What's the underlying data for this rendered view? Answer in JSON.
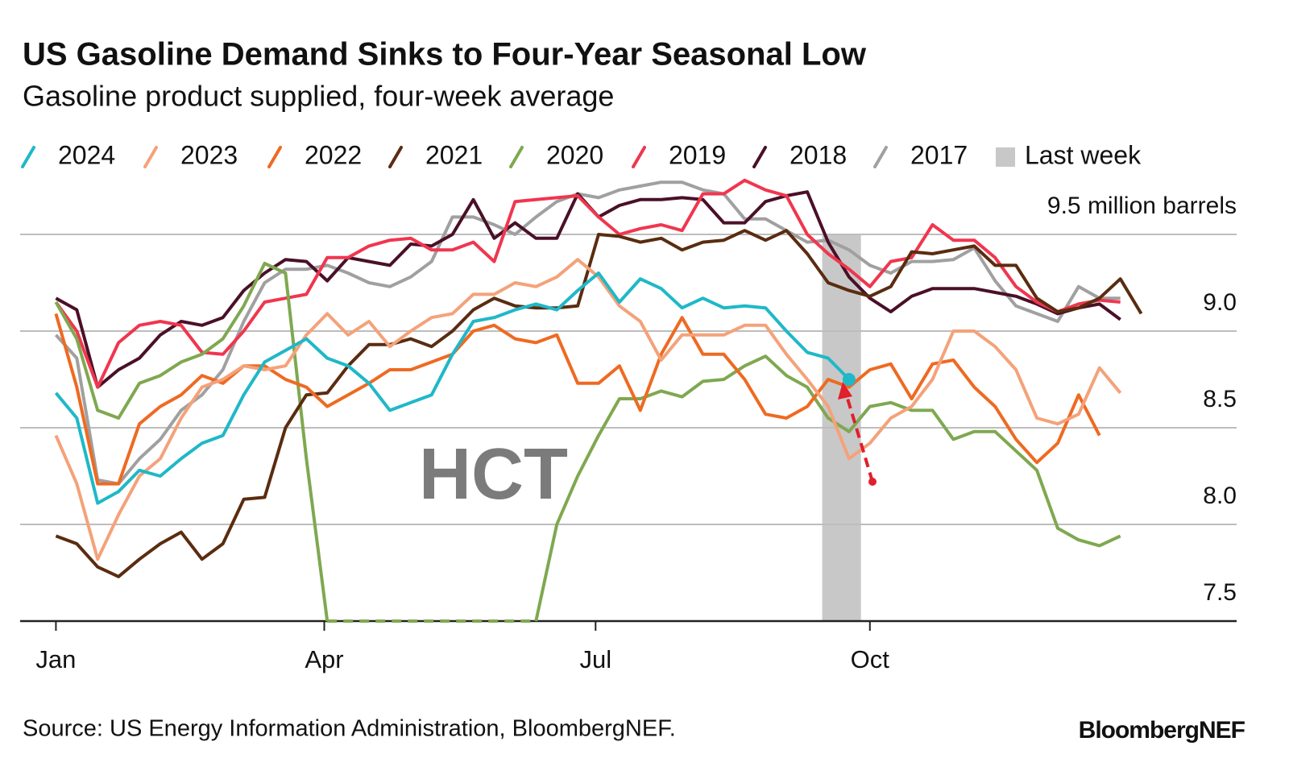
{
  "chart_data": {
    "type": "line",
    "title": "US Gasoline Demand Sinks to Four-Year Seasonal Low",
    "subtitle": "Gasoline product supplied, four-week average",
    "source": "Source: US Energy Information Administration, BloombergNEF.",
    "brand": "BloombergNEF",
    "watermark": "HCT",
    "x": [
      0,
      7,
      14,
      21,
      28,
      35,
      42,
      49,
      56,
      63,
      70,
      77,
      84,
      91,
      98,
      105,
      112,
      119,
      126,
      133,
      140,
      147,
      154,
      161,
      168,
      175,
      182,
      189,
      196,
      203,
      210,
      217,
      224,
      231,
      238,
      245,
      252,
      259,
      266,
      273,
      280,
      287,
      294,
      301,
      308,
      315,
      322,
      329,
      336,
      343,
      350,
      357,
      364
    ],
    "xlim": [
      -12,
      396
    ],
    "xticks": [
      {
        "value": 0,
        "label": "Jan"
      },
      {
        "value": 90,
        "label": "Apr"
      },
      {
        "value": 181,
        "label": "Jul"
      },
      {
        "value": 273,
        "label": "Oct"
      }
    ],
    "ylim": [
      7.5,
      9.8
    ],
    "yticks": [
      7.5,
      {
        "value": 8,
        "label": "8.0"
      },
      8.5,
      {
        "value": 9,
        "label": "9.0"
      },
      {
        "value": 9.5,
        "label": "9.5 million barrels"
      }
    ],
    "grid": true,
    "highlight": {
      "label": "Last week",
      "color": "#c8c8c8",
      "x": [
        257,
        270
      ]
    },
    "series": [
      {
        "name": "2024",
        "color": "#1fb8c8",
        "values": [
          8.68,
          8.55,
          8.11,
          8.17,
          8.28,
          8.25,
          8.34,
          8.42,
          8.46,
          8.67,
          8.84,
          8.9,
          8.96,
          8.86,
          8.82,
          8.73,
          8.59,
          8.63,
          8.67,
          8.88,
          9.05,
          9.07,
          9.11,
          9.14,
          9.11,
          9.21,
          9.3,
          9.15,
          9.27,
          9.22,
          9.12,
          9.17,
          9.12,
          9.13,
          9.12,
          9.0,
          8.89,
          8.86,
          8.75,
          null,
          null,
          null,
          null,
          null,
          null,
          null,
          null,
          null,
          null,
          null,
          null,
          null,
          null
        ]
      },
      {
        "name": "2023",
        "color": "#f4a27a",
        "values": [
          8.46,
          8.21,
          7.82,
          8.05,
          8.25,
          8.34,
          8.55,
          8.71,
          8.75,
          8.82,
          8.8,
          8.82,
          8.98,
          9.09,
          8.98,
          9.05,
          8.92,
          9.0,
          9.07,
          9.09,
          9.19,
          9.19,
          9.25,
          9.23,
          9.28,
          9.37,
          9.28,
          9.13,
          9.05,
          8.85,
          8.98,
          8.98,
          8.98,
          9.03,
          9.03,
          8.88,
          8.75,
          8.61,
          8.34,
          8.42,
          8.55,
          8.61,
          8.75,
          9.0,
          9.0,
          8.92,
          8.8,
          8.55,
          8.52,
          8.57,
          8.81,
          8.68,
          null
        ]
      },
      {
        "name": "2022",
        "color": "#ee6a22",
        "values": [
          9.09,
          8.71,
          8.21,
          8.21,
          8.52,
          8.61,
          8.67,
          8.77,
          8.73,
          8.82,
          8.82,
          8.75,
          8.71,
          8.61,
          8.67,
          8.73,
          8.8,
          8.8,
          8.84,
          8.88,
          9.0,
          9.03,
          8.96,
          8.94,
          8.98,
          8.73,
          8.73,
          8.82,
          8.59,
          8.88,
          9.07,
          8.88,
          8.88,
          8.75,
          8.57,
          8.55,
          8.61,
          8.75,
          8.71,
          8.8,
          8.83,
          8.65,
          8.83,
          8.85,
          8.71,
          8.61,
          8.44,
          8.32,
          8.42,
          8.67,
          8.46,
          null,
          null
        ]
      },
      {
        "name": "2021",
        "color": "#5a2c10",
        "values": [
          7.94,
          7.9,
          7.78,
          7.73,
          7.82,
          7.9,
          7.96,
          7.82,
          7.9,
          8.13,
          8.14,
          8.5,
          8.67,
          8.68,
          8.82,
          8.93,
          8.93,
          8.96,
          8.92,
          9.0,
          9.11,
          9.17,
          9.13,
          9.12,
          9.12,
          9.13,
          9.5,
          9.49,
          9.46,
          9.48,
          9.42,
          9.46,
          9.47,
          9.52,
          9.47,
          9.52,
          9.4,
          9.25,
          9.21,
          9.18,
          9.23,
          9.41,
          9.4,
          9.42,
          9.44,
          9.34,
          9.34,
          9.17,
          9.1,
          9.12,
          9.17,
          9.27,
          9.09
        ]
      },
      {
        "name": "2020",
        "color": "#7fa850",
        "values": [
          9.15,
          8.96,
          8.59,
          8.55,
          8.73,
          8.77,
          8.84,
          8.88,
          8.96,
          9.13,
          9.35,
          9.3,
          8.34,
          7.5,
          7.5,
          7.5,
          7.5,
          7.5,
          7.5,
          7.5,
          7.5,
          7.5,
          7.5,
          7.5,
          8.0,
          8.25,
          8.46,
          8.65,
          8.65,
          8.69,
          8.66,
          8.74,
          8.75,
          8.82,
          8.87,
          8.77,
          8.71,
          8.55,
          8.48,
          8.61,
          8.63,
          8.59,
          8.59,
          8.44,
          8.48,
          8.48,
          8.38,
          8.28,
          7.98,
          7.92,
          7.89,
          7.94,
          null
        ]
      },
      {
        "name": "2019",
        "color": "#f0364f",
        "values": [
          9.15,
          9.0,
          8.71,
          8.94,
          9.03,
          9.05,
          9.03,
          8.89,
          8.88,
          9.0,
          9.15,
          9.17,
          9.19,
          9.38,
          9.38,
          9.44,
          9.47,
          9.48,
          9.42,
          9.42,
          9.46,
          9.36,
          9.67,
          9.68,
          9.69,
          9.7,
          9.59,
          9.5,
          9.53,
          9.55,
          9.52,
          9.71,
          9.71,
          9.78,
          9.73,
          9.7,
          9.5,
          9.4,
          9.32,
          9.23,
          9.36,
          9.38,
          9.55,
          9.47,
          9.47,
          9.38,
          9.23,
          9.15,
          9.1,
          9.14,
          9.16,
          9.15,
          null
        ]
      },
      {
        "name": "2018",
        "color": "#4a1028",
        "values": [
          9.17,
          9.11,
          8.71,
          8.8,
          8.86,
          8.98,
          9.05,
          9.03,
          9.07,
          9.21,
          9.3,
          9.37,
          9.36,
          9.26,
          9.38,
          9.36,
          9.34,
          9.45,
          9.44,
          9.5,
          9.68,
          9.48,
          9.56,
          9.48,
          9.48,
          9.71,
          9.59,
          9.65,
          9.68,
          9.68,
          9.69,
          9.68,
          9.56,
          9.56,
          9.67,
          9.7,
          9.72,
          9.46,
          9.28,
          9.17,
          9.1,
          9.18,
          9.22,
          9.22,
          9.22,
          9.2,
          9.18,
          9.14,
          9.09,
          9.12,
          9.14,
          9.06,
          null
        ]
      },
      {
        "name": "2017",
        "color": "#a0a0a0",
        "values": [
          8.98,
          8.86,
          8.23,
          8.21,
          8.34,
          8.44,
          8.59,
          8.67,
          8.8,
          9.05,
          9.25,
          9.32,
          9.32,
          9.34,
          9.3,
          9.25,
          9.23,
          9.28,
          9.36,
          9.59,
          9.59,
          9.55,
          9.5,
          9.59,
          9.67,
          9.71,
          9.69,
          9.73,
          9.75,
          9.77,
          9.77,
          9.73,
          9.71,
          9.58,
          9.58,
          9.52,
          9.46,
          9.47,
          9.42,
          9.34,
          9.3,
          9.36,
          9.36,
          9.37,
          9.43,
          9.26,
          9.13,
          9.09,
          9.05,
          9.23,
          9.17,
          9.17,
          null
        ]
      }
    ]
  }
}
